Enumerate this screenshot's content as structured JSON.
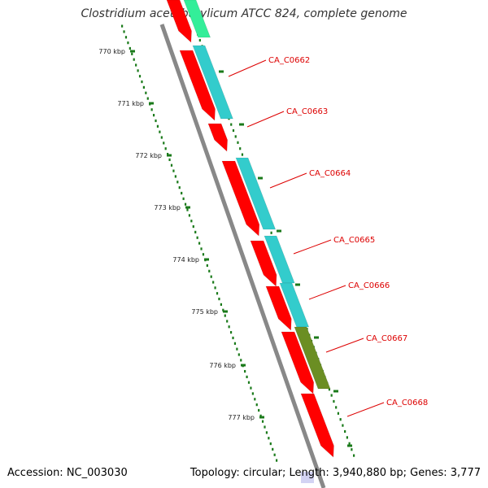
{
  "title": "Clostridium acetobutylicum ATCC 824, complete genome",
  "footer": {
    "accession": "Accession: NC_003030",
    "summary": "Topology: circular; Length: 3,940,880 bp; Genes: 3,777"
  },
  "ruler": {
    "ticks": [
      "770 kbp",
      "771 kbp",
      "772 kbp",
      "773 kbp",
      "774 kbp",
      "775 kbp",
      "776 kbp",
      "777 kbp"
    ],
    "color": "#1a7a1a"
  },
  "genes": [
    {
      "label": "CA_C0662"
    },
    {
      "label": "CA_C0663"
    },
    {
      "label": "CA_C0664"
    },
    {
      "label": "CA_C0665"
    },
    {
      "label": "CA_C0666"
    },
    {
      "label": "CA_C0667"
    },
    {
      "label": "CA_C0668"
    }
  ],
  "colors": {
    "backbone": "#888888",
    "cds": "#ff0000",
    "cog_cyan": "#33cccc",
    "cog_olive": "#6b8e23",
    "cog_green": "#33ee99",
    "label_line": "#dd0000"
  }
}
